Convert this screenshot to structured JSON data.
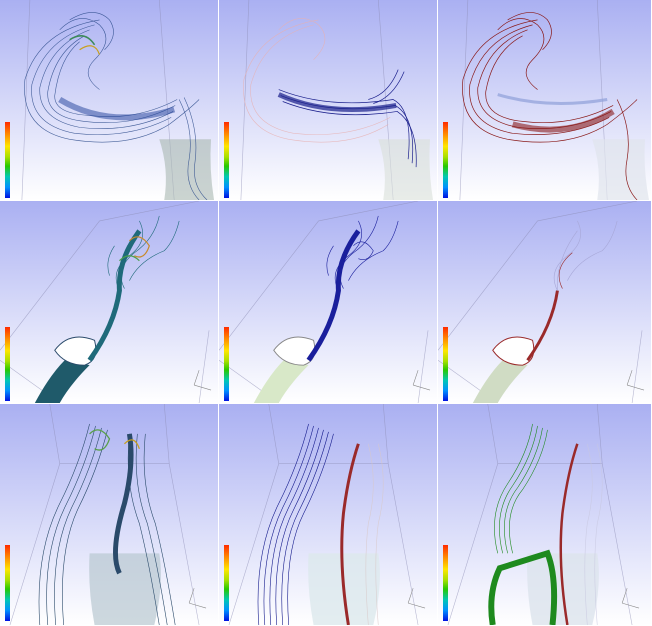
{
  "figure": {
    "panels": [
      {
        "row": 0,
        "col": 0,
        "coloring": "scalar-colormap",
        "colorbar": true,
        "line_color": "#2b4a8a",
        "accent_color": "#3d8a5a"
      },
      {
        "row": 0,
        "col": 1,
        "coloring": "highlight-blue",
        "colorbar": true,
        "line_color": "#1a1f8c",
        "accent_color": "#e8b0b0"
      },
      {
        "row": 0,
        "col": 2,
        "coloring": "highlight-red",
        "colorbar": true,
        "line_color": "#8a1a1a",
        "accent_color": "#8fa0d8"
      },
      {
        "row": 1,
        "col": 0,
        "coloring": "scalar-colormap",
        "colorbar": true,
        "line_color": "#1f6a7a",
        "accent_color": "#c88a2a"
      },
      {
        "row": 1,
        "col": 1,
        "coloring": "highlight-blue",
        "colorbar": true,
        "line_color": "#1a1f9c",
        "accent_color": "#d8e8c8"
      },
      {
        "row": 1,
        "col": 2,
        "coloring": "highlight-red",
        "colorbar": true,
        "line_color": "#9a2a2a",
        "accent_color": "#a8a8d8"
      },
      {
        "row": 2,
        "col": 0,
        "coloring": "scalar-colormap",
        "colorbar": true,
        "line_color": "#2a4a6a",
        "accent_color": "#5aa04a"
      },
      {
        "row": 2,
        "col": 1,
        "coloring": "highlight-blue-red",
        "colorbar": true,
        "line_color": "#141a8c",
        "accent_color": "#9a2a2a"
      },
      {
        "row": 2,
        "col": 2,
        "coloring": "highlight-green",
        "colorbar": true,
        "line_color": "#1e8a1e",
        "accent_color": "#9a2a2a"
      }
    ],
    "background_top": "#aab0f2",
    "background_bottom": "#ffffff"
  }
}
